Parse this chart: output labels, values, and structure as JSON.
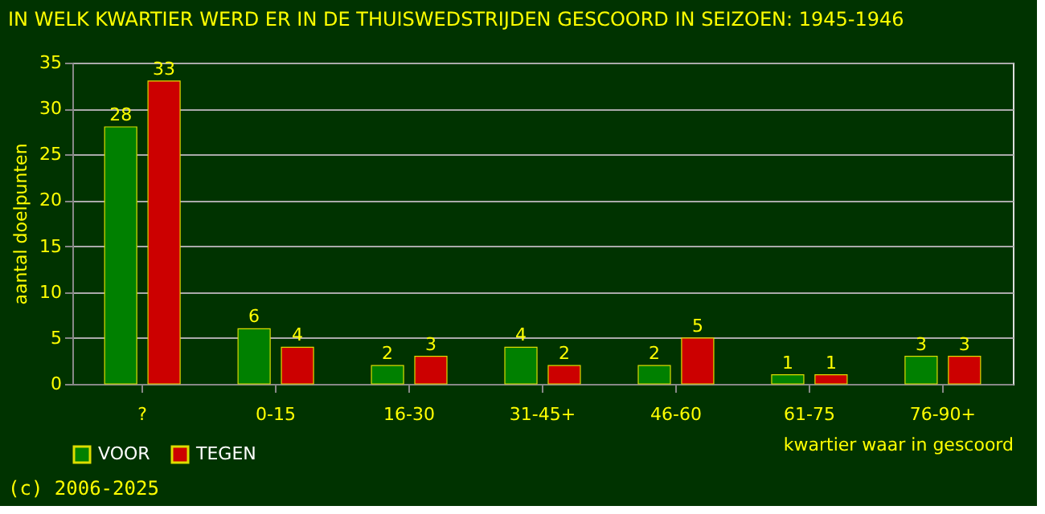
{
  "chart_data": {
    "type": "bar",
    "title": "IN WELK KWARTIER WERD ER IN DE THUISWEDSTRIJDEN GESCOORD IN SEIZOEN: 1945-1946",
    "xlabel": "kwartier waar in gescoord",
    "ylabel": "aantal doelpunten",
    "categories": [
      "?",
      "0-15",
      "16-30",
      "31-45+",
      "46-60",
      "61-75",
      "76-90+"
    ],
    "series": [
      {
        "name": "VOOR",
        "color": "#008000",
        "values": [
          28,
          6,
          2,
          4,
          2,
          1,
          3
        ]
      },
      {
        "name": "TEGEN",
        "color": "#cc0000",
        "values": [
          33,
          4,
          3,
          2,
          5,
          1,
          3
        ]
      }
    ],
    "ylim": [
      0,
      35
    ],
    "yticks": [
      0,
      5,
      10,
      15,
      20,
      25,
      30,
      35
    ],
    "grid": "y",
    "legend": "bottom",
    "data_labels": true,
    "annotations": [
      "(c) 2006-2025"
    ]
  }
}
